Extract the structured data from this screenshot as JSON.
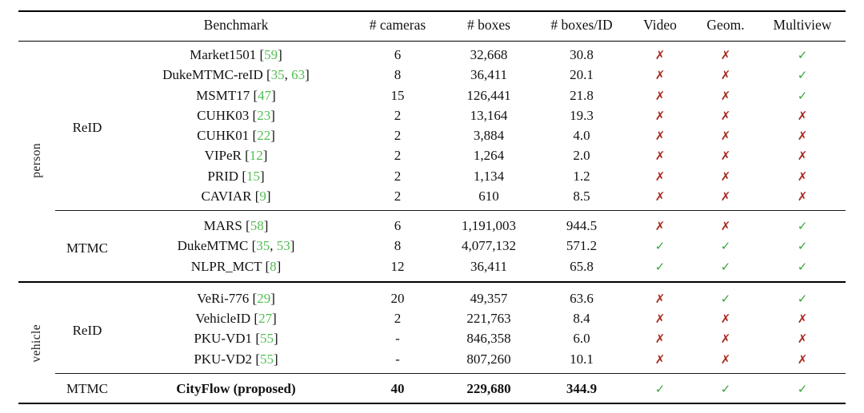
{
  "page": {
    "background": "#ffffff"
  },
  "colors": {
    "cite_link": "#52bd52",
    "check": "#3aa53a",
    "cross": "#a82a1f"
  },
  "table": {
    "headers": {
      "benchmark": "Benchmark",
      "cameras": "# cameras",
      "boxes": "# boxes",
      "boxes_per_id": "# boxes/ID",
      "video": "Video",
      "geom": "Geom.",
      "multiview": "Multiview"
    },
    "check_glyph": "✓",
    "cross_glyph": "✗",
    "groups": [
      {
        "label": "person",
        "sections": [
          {
            "label": "ReID",
            "rows": [
              {
                "benchmark": "Market1501",
                "cites": [
                  "59"
                ],
                "cameras": "6",
                "boxes": "32,668",
                "boxes_per_id": "30.8",
                "video": false,
                "geom": false,
                "multiview": true
              },
              {
                "benchmark": "DukeMTMC-reID",
                "cites": [
                  "35",
                  "63"
                ],
                "cameras": "8",
                "boxes": "36,411",
                "boxes_per_id": "20.1",
                "video": false,
                "geom": false,
                "multiview": true
              },
              {
                "benchmark": "MSMT17",
                "cites": [
                  "47"
                ],
                "cameras": "15",
                "boxes": "126,441",
                "boxes_per_id": "21.8",
                "video": false,
                "geom": false,
                "multiview": true
              },
              {
                "benchmark": "CUHK03",
                "cites": [
                  "23"
                ],
                "cameras": "2",
                "boxes": "13,164",
                "boxes_per_id": "19.3",
                "video": false,
                "geom": false,
                "multiview": false
              },
              {
                "benchmark": "CUHK01",
                "cites": [
                  "22"
                ],
                "cameras": "2",
                "boxes": "3,884",
                "boxes_per_id": "4.0",
                "video": false,
                "geom": false,
                "multiview": false
              },
              {
                "benchmark": "VIPeR",
                "cites": [
                  "12"
                ],
                "cameras": "2",
                "boxes": "1,264",
                "boxes_per_id": "2.0",
                "video": false,
                "geom": false,
                "multiview": false
              },
              {
                "benchmark": "PRID",
                "cites": [
                  "15"
                ],
                "cameras": "2",
                "boxes": "1,134",
                "boxes_per_id": "1.2",
                "video": false,
                "geom": false,
                "multiview": false
              },
              {
                "benchmark": "CAVIAR",
                "cites": [
                  "9"
                ],
                "cameras": "2",
                "boxes": "610",
                "boxes_per_id": "8.5",
                "video": false,
                "geom": false,
                "multiview": false
              }
            ]
          },
          {
            "label": "MTMC",
            "rows": [
              {
                "benchmark": "MARS",
                "cites": [
                  "58"
                ],
                "cameras": "6",
                "boxes": "1,191,003",
                "boxes_per_id": "944.5",
                "video": false,
                "geom": false,
                "multiview": true
              },
              {
                "benchmark": "DukeMTMC",
                "cites": [
                  "35",
                  "53"
                ],
                "cameras": "8",
                "boxes": "4,077,132",
                "boxes_per_id": "571.2",
                "video": true,
                "geom": true,
                "multiview": true
              },
              {
                "benchmark": "NLPR_MCT",
                "cites": [
                  "8"
                ],
                "cameras": "12",
                "boxes": "36,411",
                "boxes_per_id": "65.8",
                "video": true,
                "geom": true,
                "multiview": true
              }
            ]
          }
        ]
      },
      {
        "label": "vehicle",
        "sections": [
          {
            "label": "ReID",
            "rows": [
              {
                "benchmark": "VeRi-776",
                "cites": [
                  "29"
                ],
                "cameras": "20",
                "boxes": "49,357",
                "boxes_per_id": "63.6",
                "video": false,
                "geom": true,
                "multiview": true
              },
              {
                "benchmark": "VehicleID",
                "cites": [
                  "27"
                ],
                "cameras": "2",
                "boxes": "221,763",
                "boxes_per_id": "8.4",
                "video": false,
                "geom": false,
                "multiview": false
              },
              {
                "benchmark": "PKU-VD1",
                "cites": [
                  "55"
                ],
                "cameras": "-",
                "boxes": "846,358",
                "boxes_per_id": "6.0",
                "video": false,
                "geom": false,
                "multiview": false
              },
              {
                "benchmark": "PKU-VD2",
                "cites": [
                  "55"
                ],
                "cameras": "-",
                "boxes": "807,260",
                "boxes_per_id": "10.1",
                "video": false,
                "geom": false,
                "multiview": false
              }
            ]
          },
          {
            "label": "MTMC",
            "rows": [
              {
                "benchmark": "CityFlow (proposed)",
                "cites": [],
                "bold": true,
                "cameras": "40",
                "boxes": "229,680",
                "boxes_per_id": "344.9",
                "video": true,
                "geom": true,
                "multiview": true
              }
            ]
          }
        ]
      }
    ]
  }
}
